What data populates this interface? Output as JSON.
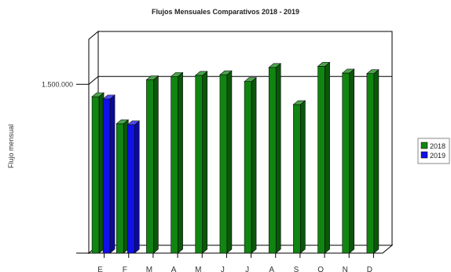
{
  "chart_data": {
    "type": "bar",
    "title": "Flujos Mensuales Comparativos 2018 - 2019",
    "xlabel": "",
    "ylabel": "Flujo mensual",
    "categories": [
      "E",
      "F",
      "M",
      "A",
      "M",
      "J",
      "J",
      "A",
      "S",
      "O",
      "N",
      "D"
    ],
    "series": [
      {
        "name": "2018",
        "color": "#118511",
        "values": [
          1390000,
          1150000,
          1540000,
          1570000,
          1580000,
          1585000,
          1525000,
          1650000,
          1320000,
          1660000,
          1600000,
          1595000
        ]
      },
      {
        "name": "2019",
        "color": "#1010e8",
        "values": [
          1370000,
          1140000,
          null,
          null,
          null,
          null,
          null,
          null,
          null,
          null,
          null,
          null
        ]
      }
    ],
    "yticks": [
      {
        "value": 1500000,
        "label": "1.500.000"
      }
    ],
    "ylim": [
      0,
      1900000
    ],
    "legend_position": "right",
    "grid": true,
    "style": "3d"
  }
}
